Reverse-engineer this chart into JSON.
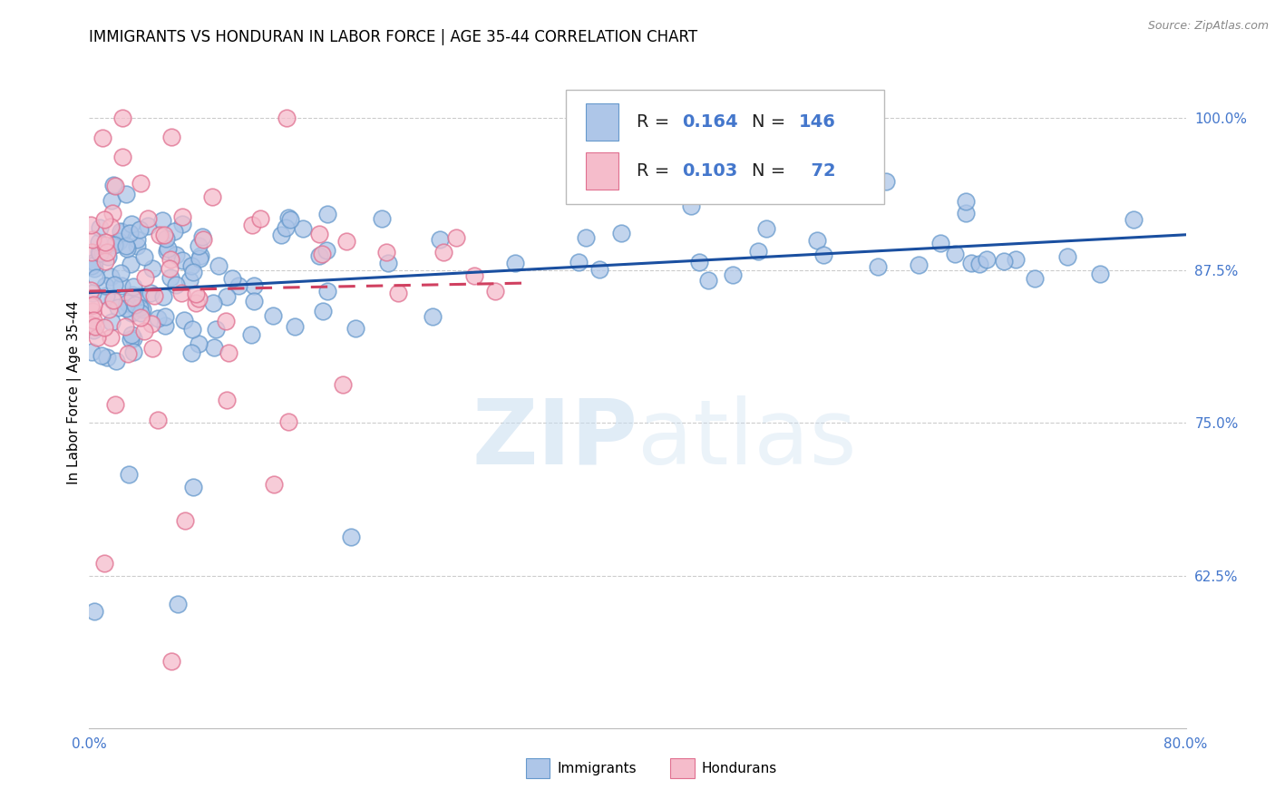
{
  "title": "IMMIGRANTS VS HONDURAN IN LABOR FORCE | AGE 35-44 CORRELATION CHART",
  "source": "Source: ZipAtlas.com",
  "ylabel": "In Labor Force | Age 35-44",
  "xlim": [
    0.0,
    0.8
  ],
  "ylim": [
    0.5,
    1.05
  ],
  "yticks": [
    0.625,
    0.75,
    0.875,
    1.0
  ],
  "ytick_labels": [
    "62.5%",
    "75.0%",
    "87.5%",
    "100.0%"
  ],
  "legend_r1": "0.164",
  "legend_n1": "146",
  "legend_r2": "0.103",
  "legend_n2": "72",
  "immigrants_color": "#aec6e8",
  "immigrants_edge": "#6699cc",
  "hondurans_color": "#f5bccb",
  "hondurans_edge": "#e07090",
  "trend_immigrants_color": "#1a4fa0",
  "trend_hondurans_color": "#d04060",
  "watermark_color": "#ddeeff",
  "background_color": "#ffffff",
  "grid_color": "#cccccc",
  "axis_tick_color": "#4477cc",
  "title_fontsize": 12,
  "label_fontsize": 11,
  "tick_fontsize": 11,
  "source_fontsize": 9,
  "legend_fontsize": 14
}
